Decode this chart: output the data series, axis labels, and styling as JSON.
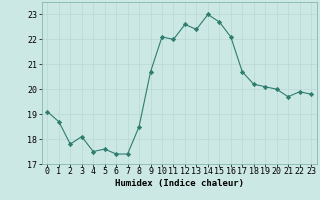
{
  "x": [
    0,
    1,
    2,
    3,
    4,
    5,
    6,
    7,
    8,
    9,
    10,
    11,
    12,
    13,
    14,
    15,
    16,
    17,
    18,
    19,
    20,
    21,
    22,
    23
  ],
  "y": [
    19.1,
    18.7,
    17.8,
    18.1,
    17.5,
    17.6,
    17.4,
    17.4,
    18.5,
    20.7,
    22.1,
    22.0,
    22.6,
    22.4,
    23.0,
    22.7,
    22.1,
    20.7,
    20.2,
    20.1,
    20.0,
    19.7,
    19.9,
    19.8
  ],
  "line_color": "#2e7d6e",
  "marker": "D",
  "marker_size": 2.2,
  "bg_color": "#cce8e4",
  "grid_color": "#b8d8d4",
  "grid_color_minor": "#d4eceb",
  "xlabel": "Humidex (Indice chaleur)",
  "ylim": [
    17,
    23.5
  ],
  "xlim": [
    -0.5,
    23.5
  ],
  "yticks": [
    17,
    18,
    19,
    20,
    21,
    22,
    23
  ],
  "xticks": [
    0,
    1,
    2,
    3,
    4,
    5,
    6,
    7,
    8,
    9,
    10,
    11,
    12,
    13,
    14,
    15,
    16,
    17,
    18,
    19,
    20,
    21,
    22,
    23
  ],
  "label_fontsize": 6.5,
  "tick_fontsize": 6.0
}
